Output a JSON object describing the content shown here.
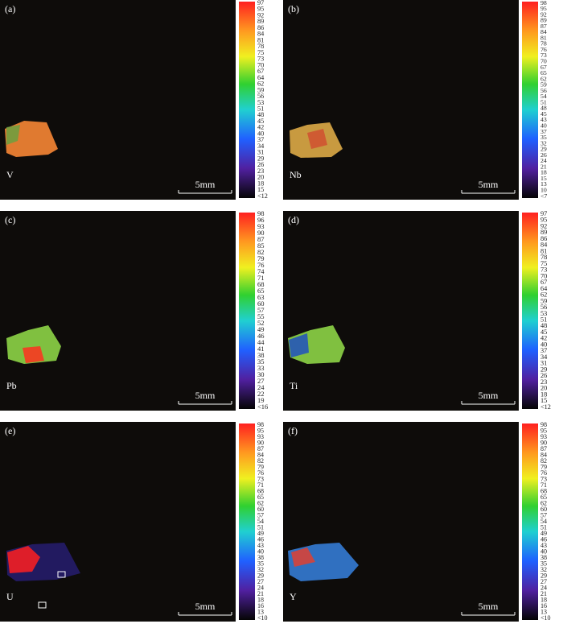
{
  "panels": [
    {
      "label": "(a)",
      "element": "V",
      "scale_bar": "5mm",
      "colorbar": [
        "97",
        "95",
        "92",
        "89",
        "86",
        "84",
        "81",
        "78",
        "75",
        "73",
        "70",
        "67",
        "64",
        "62",
        "59",
        "56",
        "53",
        "51",
        "48",
        "45",
        "42",
        "40",
        "37",
        "34",
        "31",
        "29",
        "26",
        "23",
        "20",
        "18",
        "15",
        "<12"
      ]
    },
    {
      "label": "(b)",
      "element": "Nb",
      "scale_bar": "5mm",
      "colorbar": [
        "98",
        "95",
        "92",
        "89",
        "87",
        "84",
        "81",
        "78",
        "76",
        "73",
        "70",
        "67",
        "65",
        "62",
        "59",
        "56",
        "54",
        "51",
        "48",
        "45",
        "43",
        "40",
        "37",
        "35",
        "32",
        "29",
        "26",
        "24",
        "21",
        "18",
        "15",
        "13",
        "10",
        "<7"
      ]
    },
    {
      "label": "(c)",
      "element": "Pb",
      "scale_bar": "5mm",
      "colorbar": [
        "98",
        "96",
        "93",
        "90",
        "87",
        "85",
        "82",
        "79",
        "76",
        "74",
        "71",
        "68",
        "65",
        "63",
        "60",
        "57",
        "55",
        "52",
        "49",
        "46",
        "44",
        "41",
        "38",
        "35",
        "33",
        "30",
        "27",
        "24",
        "22",
        "19",
        "<16"
      ]
    },
    {
      "label": "(d)",
      "element": "Ti",
      "scale_bar": "5mm",
      "colorbar": [
        "97",
        "95",
        "92",
        "89",
        "86",
        "84",
        "81",
        "78",
        "75",
        "73",
        "70",
        "67",
        "64",
        "62",
        "59",
        "56",
        "53",
        "51",
        "48",
        "45",
        "42",
        "40",
        "37",
        "34",
        "31",
        "29",
        "26",
        "23",
        "20",
        "18",
        "15",
        "<12"
      ]
    },
    {
      "label": "(e)",
      "element": "U",
      "scale_bar": "5mm",
      "colorbar": [
        "98",
        "95",
        "93",
        "90",
        "87",
        "84",
        "82",
        "79",
        "76",
        "73",
        "71",
        "68",
        "65",
        "62",
        "60",
        "57",
        "54",
        "51",
        "49",
        "46",
        "43",
        "40",
        "38",
        "35",
        "32",
        "29",
        "27",
        "24",
        "21",
        "18",
        "16",
        "13",
        "<10"
      ]
    },
    {
      "label": "(f)",
      "element": "Y",
      "scale_bar": "5mm",
      "colorbar": [
        "98",
        "95",
        "93",
        "90",
        "87",
        "84",
        "82",
        "79",
        "76",
        "73",
        "71",
        "68",
        "65",
        "62",
        "60",
        "57",
        "54",
        "51",
        "49",
        "46",
        "43",
        "40",
        "38",
        "35",
        "32",
        "29",
        "27",
        "24",
        "21",
        "18",
        "16",
        "13",
        "<10"
      ]
    }
  ]
}
